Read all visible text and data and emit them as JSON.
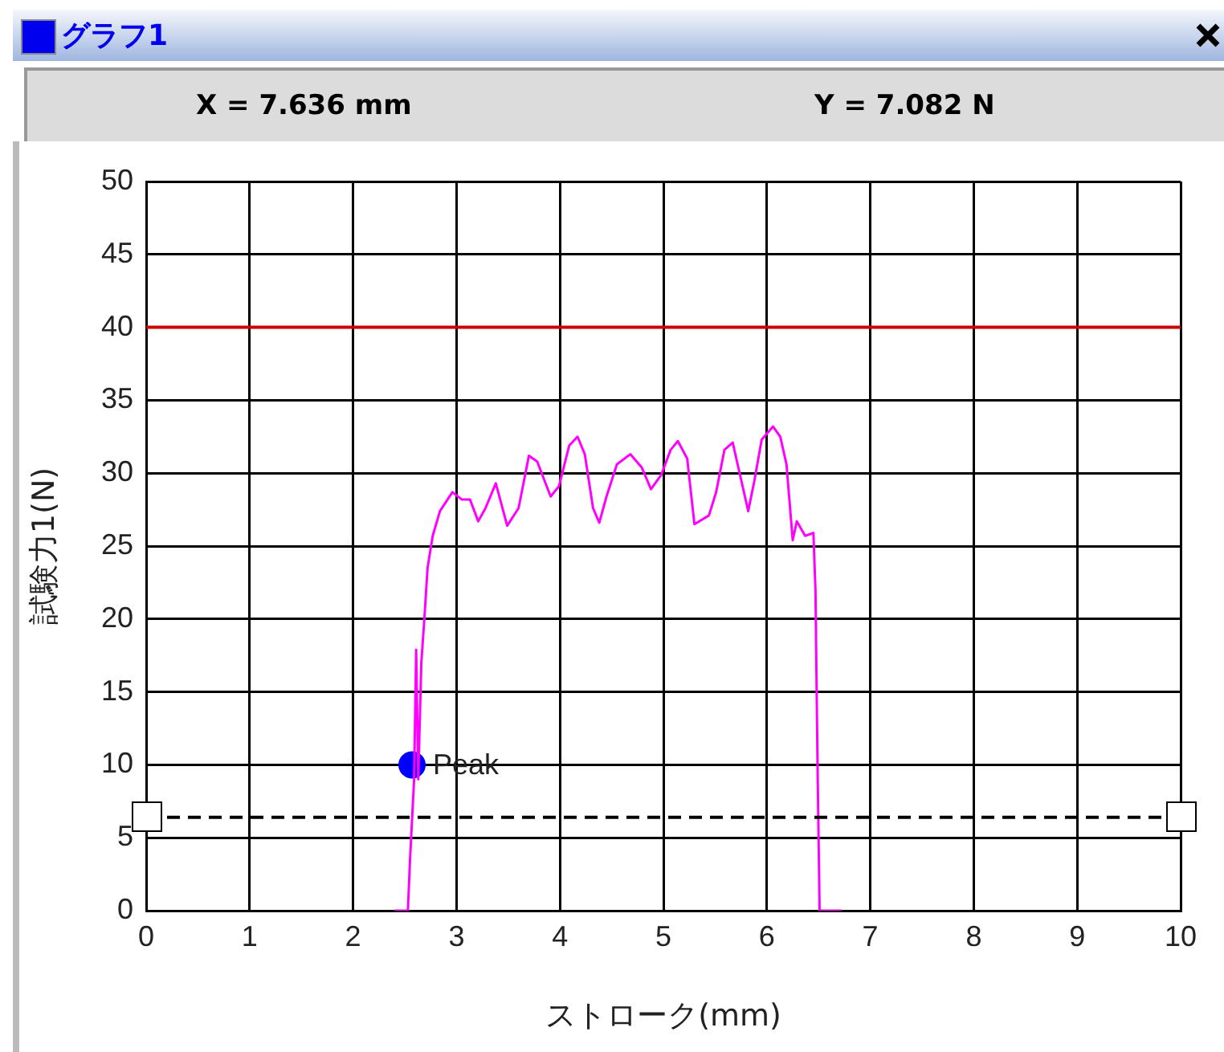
{
  "chart_data": {
    "type": "line",
    "title": "グラフ1",
    "annotations": [
      "X = 7.636 mm",
      "Y = 7.082 N"
    ],
    "xlabel": "ストローク(mm)",
    "ylabel": "試験力1(N)",
    "xlim": [
      0,
      10
    ],
    "xticks": [
      0,
      1,
      2,
      3,
      4,
      5,
      6,
      7,
      8,
      9,
      10
    ],
    "ylim": [
      0,
      50
    ],
    "yticks": [
      0,
      5,
      10,
      15,
      20,
      25,
      30,
      35,
      40,
      45,
      50
    ],
    "grid": true,
    "legend": false,
    "line_style": "solid",
    "ref_lines": [
      {
        "axis": "y",
        "value": 40,
        "color": "#cc0000",
        "line_style": "solid"
      },
      {
        "axis": "y",
        "value": 6.4,
        "color": "#000000",
        "line_style": "dashed"
      }
    ],
    "series": [
      {
        "type": "line",
        "marker": "none",
        "color": "#ff00ff",
        "x": [
          2.4,
          2.53,
          2.55,
          2.59,
          2.61,
          2.63,
          2.66,
          2.69,
          2.72,
          2.77,
          2.84,
          2.96,
          3.05,
          3.13,
          3.21,
          3.28,
          3.38,
          3.49,
          3.6,
          3.7,
          3.78,
          3.91,
          3.99,
          4.09,
          4.17,
          4.24,
          4.32,
          4.38,
          4.45,
          4.55,
          4.68,
          4.79,
          4.88,
          4.98,
          5.07,
          5.14,
          5.23,
          5.3,
          5.44,
          5.51,
          5.59,
          5.67,
          5.74,
          5.82,
          5.88,
          5.95,
          6.06,
          6.13,
          6.19,
          6.25,
          6.29,
          6.37,
          6.45,
          6.47,
          6.49,
          6.51,
          6.72
        ],
        "values": [
          0,
          0,
          3.4,
          9,
          17.9,
          9,
          17,
          20.1,
          23.5,
          25.7,
          27.4,
          28.7,
          28.2,
          28.2,
          26.7,
          27.6,
          29.3,
          26.4,
          27.6,
          31.2,
          30.8,
          28.4,
          29.1,
          31.9,
          32.5,
          31.3,
          27.6,
          26.6,
          28.4,
          30.6,
          31.3,
          30.4,
          28.9,
          29.9,
          31.6,
          32.2,
          31.0,
          26.5,
          27.1,
          28.7,
          31.6,
          32.1,
          29.9,
          27.4,
          29.5,
          32.3,
          33.2,
          32.5,
          30.6,
          25.4,
          26.7,
          25.7,
          25.9,
          22,
          10,
          0,
          0
        ]
      },
      {
        "type": "scatter",
        "name": "Peak",
        "color": "#0000ff",
        "marker": "circle",
        "x": [
          2.57
        ],
        "values": [
          10
        ]
      }
    ]
  }
}
